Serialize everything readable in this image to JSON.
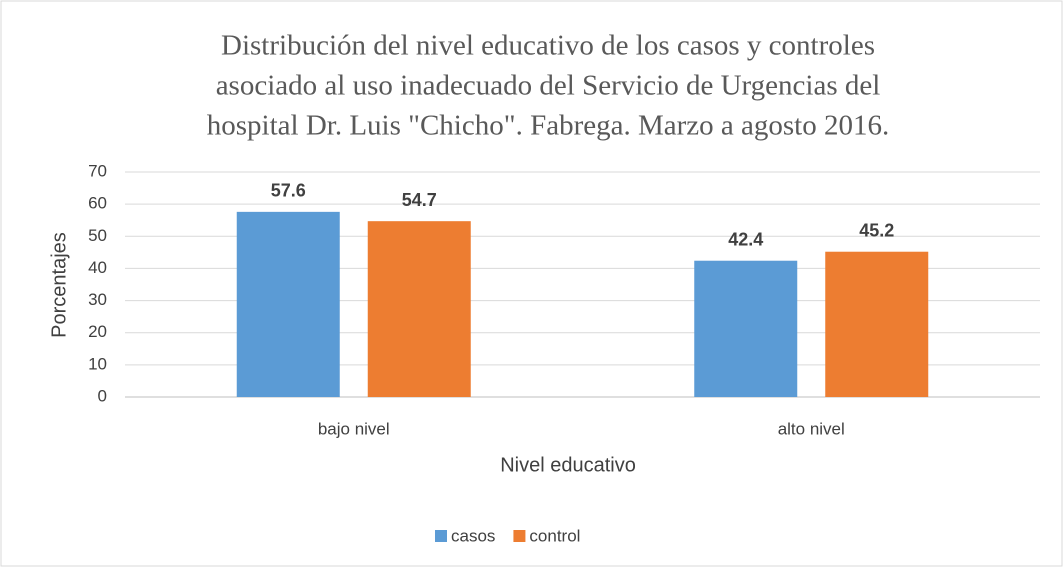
{
  "chart_data": {
    "type": "bar",
    "title": [
      "Distribución del nivel educativo de los casos y controles",
      "asociado al uso inadecuado del Servicio de Urgencias del",
      "hospital Dr. Luis \"Chicho\". Fabrega. Marzo a agosto 2016."
    ],
    "x_label": "Nivel educativo",
    "y_label": "Porcentajes",
    "categories": [
      "bajo nivel",
      "alto nivel"
    ],
    "series": [
      {
        "name": "casos",
        "color": "#5b9bd5",
        "values": [
          57.6,
          42.4
        ]
      },
      {
        "name": "control",
        "color": "#ed7d31",
        "values": [
          54.7,
          45.2
        ]
      }
    ],
    "ylim": [
      0,
      70
    ],
    "yticks": [
      0,
      10,
      20,
      30,
      40,
      50,
      60,
      70
    ],
    "grid": true,
    "legend": "bottom"
  }
}
